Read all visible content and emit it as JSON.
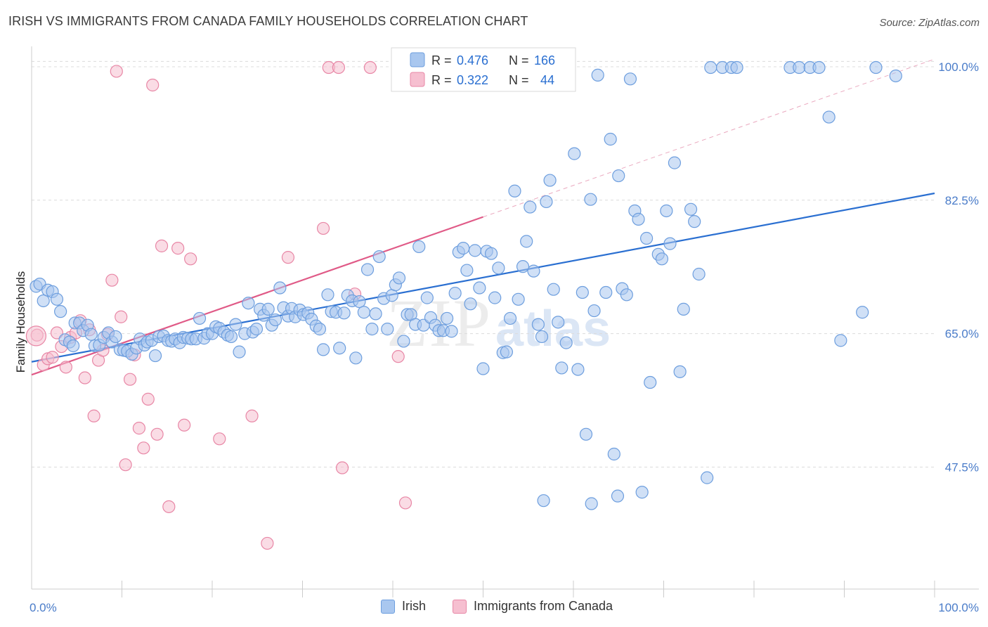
{
  "header": {
    "title": "IRISH VS IMMIGRANTS FROM CANADA FAMILY HOUSEHOLDS CORRELATION CHART",
    "source": "Source: ZipAtlas.com"
  },
  "colors": {
    "blue_fill": "#a9c7ef",
    "blue_stroke": "#6d9ede",
    "blue_line": "#2a6fd1",
    "pink_fill": "#f6bfd0",
    "pink_stroke": "#e887a6",
    "pink_line": "#e05a87",
    "axis_label": "#4a7cc9",
    "grid": "#dcdcdc"
  },
  "watermark": {
    "zip": "ZIP",
    "atlas": "atlas"
  },
  "legend_box": {
    "rows": [
      {
        "r_label": "R =",
        "r_value": "0.476",
        "n_label": "N =",
        "n_value": "166",
        "series": "blue"
      },
      {
        "r_label": "R =",
        "r_value": "0.322",
        "n_label": "N =",
        "n_value": "44",
        "series": "pink"
      }
    ]
  },
  "bottom_legend": [
    {
      "label": "Irish",
      "series": "blue"
    },
    {
      "label": "Immigrants from Canada",
      "series": "pink"
    }
  ],
  "chart_data": {
    "type": "scatter",
    "title": "IRISH VS IMMIGRANTS FROM CANADA FAMILY HOUSEHOLDS CORRELATION CHART",
    "xlabel": "",
    "ylabel": "Family Households",
    "xlim": [
      0,
      100
    ],
    "ylim": [
      31.5,
      102.3
    ],
    "x_tick_labels": [
      {
        "value": 0,
        "label": "0.0%"
      },
      {
        "value": 100,
        "label": "100.0%"
      }
    ],
    "y_tick_labels": [
      {
        "value": 100,
        "label": "100.0%"
      },
      {
        "value": 82.5,
        "label": "82.5%"
      },
      {
        "value": 65,
        "label": "65.0%"
      },
      {
        "value": 47.5,
        "label": "47.5%"
      }
    ],
    "x_minor_ticks": [
      10,
      20,
      30,
      40,
      50,
      60,
      70,
      80,
      90,
      100
    ],
    "series": [
      {
        "name": "Irish",
        "color": "blue",
        "R": 0.476,
        "N": 166,
        "trend": {
          "x0": 0,
          "y0": 61.3,
          "x1": 100,
          "y1": 83.4
        },
        "points": [
          [
            0.5,
            71.2
          ],
          [
            0.9,
            71.5
          ],
          [
            1.3,
            69.3
          ],
          [
            1.8,
            70.7
          ],
          [
            2.3,
            70.5
          ],
          [
            2.8,
            69.5
          ],
          [
            3.2,
            67.9
          ],
          [
            3.7,
            64.2
          ],
          [
            4.2,
            63.9
          ],
          [
            4.6,
            63.4
          ],
          [
            4.8,
            66.4
          ],
          [
            5.3,
            66.4
          ],
          [
            5.7,
            65.4
          ],
          [
            6.2,
            66.1
          ],
          [
            6.6,
            64.9
          ],
          [
            7.0,
            63.4
          ],
          [
            7.5,
            63.5
          ],
          [
            8.0,
            64.5
          ],
          [
            8.5,
            65.1
          ],
          [
            8.9,
            63.9
          ],
          [
            9.3,
            64.6
          ],
          [
            9.8,
            62.9
          ],
          [
            10.2,
            62.8
          ],
          [
            10.6,
            62.7
          ],
          [
            11.1,
            62.3
          ],
          [
            11.6,
            63.1
          ],
          [
            12.0,
            64.3
          ],
          [
            12.5,
            63.5
          ],
          [
            12.8,
            63.9
          ],
          [
            13.3,
            64.1
          ],
          [
            13.7,
            62.1
          ],
          [
            14.1,
            64.6
          ],
          [
            14.6,
            64.7
          ],
          [
            15.1,
            64.1
          ],
          [
            15.5,
            64.0
          ],
          [
            15.9,
            64.3
          ],
          [
            16.4,
            63.8
          ],
          [
            16.8,
            64.5
          ],
          [
            17.3,
            64.4
          ],
          [
            17.7,
            64.3
          ],
          [
            18.2,
            64.3
          ],
          [
            18.6,
            67.0
          ],
          [
            19.1,
            64.4
          ],
          [
            19.5,
            65.0
          ],
          [
            20.0,
            65.0
          ],
          [
            20.4,
            65.9
          ],
          [
            20.8,
            65.7
          ],
          [
            21.3,
            65.2
          ],
          [
            21.7,
            64.8
          ],
          [
            22.1,
            64.6
          ],
          [
            22.6,
            66.2
          ],
          [
            23.0,
            62.6
          ],
          [
            23.6,
            65.0
          ],
          [
            24.0,
            69.0
          ],
          [
            24.5,
            65.2
          ],
          [
            24.9,
            65.6
          ],
          [
            25.3,
            68.2
          ],
          [
            25.7,
            67.4
          ],
          [
            26.2,
            68.2
          ],
          [
            26.6,
            66.1
          ],
          [
            27.0,
            66.8
          ],
          [
            27.5,
            71.0
          ],
          [
            27.9,
            68.4
          ],
          [
            28.4,
            67.3
          ],
          [
            28.8,
            68.3
          ],
          [
            29.2,
            67.2
          ],
          [
            29.7,
            68.1
          ],
          [
            30.1,
            67.5
          ],
          [
            30.6,
            67.7
          ],
          [
            31.0,
            66.9
          ],
          [
            31.5,
            66.0
          ],
          [
            31.9,
            65.6
          ],
          [
            32.3,
            62.9
          ],
          [
            32.8,
            70.1
          ],
          [
            33.2,
            67.9
          ],
          [
            33.7,
            67.8
          ],
          [
            34.1,
            63.1
          ],
          [
            34.6,
            67.7
          ],
          [
            35.0,
            70.0
          ],
          [
            35.5,
            69.3
          ],
          [
            35.9,
            61.8
          ],
          [
            36.3,
            69.2
          ],
          [
            36.8,
            67.8
          ],
          [
            37.2,
            73.4
          ],
          [
            37.7,
            65.6
          ],
          [
            38.1,
            67.6
          ],
          [
            38.5,
            75.1
          ],
          [
            39.0,
            69.6
          ],
          [
            39.4,
            65.6
          ],
          [
            39.9,
            70.0
          ],
          [
            40.3,
            71.4
          ],
          [
            40.7,
            72.3
          ],
          [
            41.2,
            64.0
          ],
          [
            41.6,
            67.5
          ],
          [
            42.0,
            67.5
          ],
          [
            42.5,
            66.2
          ],
          [
            42.9,
            76.4
          ],
          [
            43.4,
            66.1
          ],
          [
            43.8,
            69.7
          ],
          [
            44.2,
            67.1
          ],
          [
            44.7,
            66.1
          ],
          [
            45.1,
            65.4
          ],
          [
            45.6,
            65.4
          ],
          [
            46.0,
            67.0
          ],
          [
            46.5,
            65.3
          ],
          [
            46.9,
            70.3
          ],
          [
            47.3,
            75.7
          ],
          [
            47.8,
            76.2
          ],
          [
            48.2,
            73.3
          ],
          [
            48.6,
            68.9
          ],
          [
            49.1,
            75.9
          ],
          [
            49.6,
            71.0
          ],
          [
            50.0,
            60.4
          ],
          [
            50.4,
            75.8
          ],
          [
            50.9,
            75.5
          ],
          [
            51.3,
            69.7
          ],
          [
            51.7,
            73.6
          ],
          [
            52.2,
            62.5
          ],
          [
            52.6,
            62.6
          ],
          [
            53.0,
            67.0
          ],
          [
            53.5,
            83.7
          ],
          [
            53.9,
            69.5
          ],
          [
            54.4,
            73.8
          ],
          [
            54.8,
            77.1
          ],
          [
            55.2,
            81.6
          ],
          [
            55.6,
            73.2
          ],
          [
            56.1,
            66.2
          ],
          [
            56.5,
            64.6
          ],
          [
            57.0,
            82.3
          ],
          [
            57.4,
            85.1
          ],
          [
            57.8,
            70.8
          ],
          [
            58.3,
            66.5
          ],
          [
            59.2,
            63.8
          ],
          [
            60.1,
            88.6
          ],
          [
            60.5,
            60.3
          ],
          [
            61.0,
            70.4
          ],
          [
            61.4,
            51.8
          ],
          [
            61.9,
            82.6
          ],
          [
            62.3,
            68.0
          ],
          [
            62.7,
            98.9
          ],
          [
            63.6,
            70.4
          ],
          [
            64.1,
            90.5
          ],
          [
            64.5,
            49.2
          ],
          [
            65.0,
            85.7
          ],
          [
            65.4,
            70.9
          ],
          [
            65.9,
            70.1
          ],
          [
            66.3,
            98.4
          ],
          [
            66.8,
            81.1
          ],
          [
            67.2,
            80.0
          ],
          [
            67.6,
            44.2
          ],
          [
            68.1,
            77.5
          ],
          [
            68.5,
            58.6
          ],
          [
            69.4,
            75.4
          ],
          [
            69.8,
            74.8
          ],
          [
            70.3,
            81.1
          ],
          [
            70.7,
            76.8
          ],
          [
            71.2,
            87.4
          ],
          [
            71.8,
            60.0
          ],
          [
            72.2,
            68.2
          ],
          [
            73.0,
            81.3
          ],
          [
            73.4,
            79.7
          ],
          [
            73.9,
            72.8
          ],
          [
            74.8,
            46.1
          ],
          [
            75.2,
            99.9
          ],
          [
            76.5,
            99.9
          ],
          [
            77.5,
            99.9
          ],
          [
            78.1,
            99.9
          ],
          [
            84.0,
            99.9
          ],
          [
            85.0,
            99.9
          ],
          [
            86.2,
            99.9
          ],
          [
            87.2,
            99.9
          ],
          [
            88.3,
            93.4
          ],
          [
            89.6,
            64.1
          ],
          [
            92.0,
            67.8
          ],
          [
            93.5,
            99.9
          ],
          [
            95.7,
            98.8
          ],
          [
            58.7,
            60.5
          ],
          [
            64.9,
            43.7
          ],
          [
            62.0,
            42.7
          ],
          [
            56.7,
            43.1
          ]
        ]
      },
      {
        "name": "Immigrants from Canada",
        "color": "pink",
        "R": 0.322,
        "N": 44,
        "trend": {
          "x0": 0,
          "y0": 59.6,
          "x1": 50,
          "y1": 80.3
        },
        "dashed_extension": {
          "x0": 50,
          "y0": 80.3,
          "x1": 100,
          "y1": 101.0
        },
        "points": [
          [
            0.6,
            64.8
          ],
          [
            1.3,
            60.9
          ],
          [
            1.8,
            61.7
          ],
          [
            2.3,
            61.9
          ],
          [
            2.8,
            65.1
          ],
          [
            3.3,
            63.3
          ],
          [
            3.8,
            60.6
          ],
          [
            4.3,
            64.5
          ],
          [
            4.9,
            65.1
          ],
          [
            5.4,
            66.7
          ],
          [
            5.9,
            59.2
          ],
          [
            6.4,
            65.5
          ],
          [
            6.9,
            54.2
          ],
          [
            7.4,
            61.5
          ],
          [
            7.9,
            62.8
          ],
          [
            8.4,
            64.9
          ],
          [
            8.9,
            72.0
          ],
          [
            9.4,
            99.4
          ],
          [
            9.9,
            67.2
          ],
          [
            10.4,
            47.8
          ],
          [
            10.9,
            59.0
          ],
          [
            11.4,
            62.2
          ],
          [
            11.9,
            52.6
          ],
          [
            12.4,
            50.0
          ],
          [
            12.9,
            56.4
          ],
          [
            13.4,
            97.6
          ],
          [
            13.9,
            51.8
          ],
          [
            14.4,
            76.5
          ],
          [
            15.2,
            42.3
          ],
          [
            16.2,
            76.2
          ],
          [
            16.9,
            53.0
          ],
          [
            17.6,
            74.8
          ],
          [
            20.8,
            51.2
          ],
          [
            24.4,
            54.2
          ],
          [
            26.1,
            37.5
          ],
          [
            28.4,
            75.0
          ],
          [
            32.3,
            78.8
          ],
          [
            32.9,
            99.9
          ],
          [
            34.0,
            99.9
          ],
          [
            34.4,
            47.4
          ],
          [
            37.5,
            99.9
          ],
          [
            41.4,
            42.8
          ],
          [
            40.6,
            62.0
          ],
          [
            35.8,
            70.2
          ]
        ]
      }
    ]
  }
}
